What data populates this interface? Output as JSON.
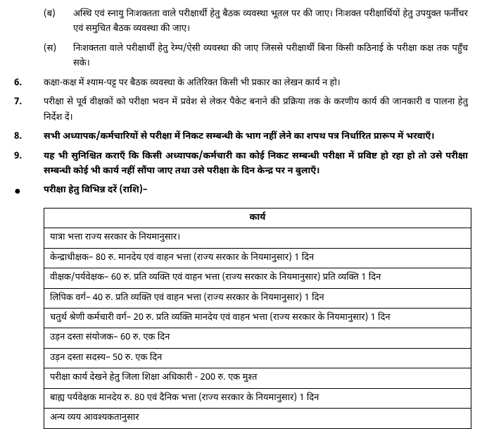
{
  "items": [
    {
      "marker": "",
      "submarker": "(ब)",
      "text": "अस्थि एवं स्नायु निःशक्तता वाले परीक्षार्थी हेतु बैठक व्यवस्था भूतल पर की जाए। निःशक्त परीक्षार्थियों हेतु उपयुक्त फर्नीचर एवं समुचित बैठक व्यवस्था की जाए।",
      "bold": false,
      "sub": true
    },
    {
      "marker": "",
      "submarker": "(स)",
      "text": "निःशक्तता वाले परीक्षार्थी हेतु रेम्प/ऐसी व्यवस्था की जाए जिससे परीक्षार्थी बिना किसी कठिनाई के परीक्षा कक्ष तक पहुँच सके।",
      "bold": false,
      "sub": true
    },
    {
      "marker": "6.",
      "text": "कक्षा-कक्ष में श्याम-पट्ट पर बैठक व्यवस्था के अतिरिक्त किसी भी प्रकार का लेखन कार्य न हो।",
      "bold": false
    },
    {
      "marker": "7.",
      "text": "परीक्षा से पूर्व वीक्षकों को परीक्षा भवन में प्रवेश से लेकर पैकेट बनाने की प्रक्रिया तक के करणीय कार्य की जानकारी व पालना हेतु निर्देश दें।",
      "bold": false
    },
    {
      "marker": "8.",
      "text": "सभी अध्यापक/कर्मचारियों से परीक्षा में निकट सम्बन्धी के भाग नहीं लेने का शपथ पत्र निर्धारित प्रारूप में भरवाएँ।",
      "bold": true
    },
    {
      "marker": "9.",
      "text": "यह भी सुनिश्चित कराएँ कि किसी अध्यापक/कर्मचारी का कोई निकट सम्बन्धी परीक्षा में प्रविष्ट हो रहा हो तो उसे परीक्षा सम्बन्धी कोई भी कार्य नहीं सौंपा जाए तथा उसे परीक्षा के दिन केन्द्र पर न बुलाएँ।",
      "bold": true
    }
  ],
  "bullet": {
    "text": "परीक्षा हेतु विभिन्न दरें (राशि)–"
  },
  "table": {
    "header": "कार्य",
    "rows": [
      "यात्रा भत्ता राज्य सरकार के नियमानुसार।",
      "केन्द्राधीक्षक– 80 रु. मानदेय एवं वाहन भत्ता (राज्य सरकार के नियमानुसार) 1 दिन",
      "वीक्षक/पर्यवेक्षक– 60 रु. प्रति व्यक्ति एवं वाहन भत्ता (राज्य सरकार के नियमानुसार) प्रति व्यक्ति 1 दिन",
      "लिपिक वर्ग– 40 रु. प्रति व्यक्ति एवं वाहन भत्ता (राज्य सरकार के नियमानुसार) 1 दिन",
      "चतुर्थ श्रेणी कर्मचारी वर्ग– 20 रु. प्रति व्यक्ति मानदेय एवं वाहन भत्ता (राज्य सरकार के नियमानुसार) 1 दिन",
      "उड़न दस्ता संयोजक– 60 रु. एक दिन",
      "उड़न दस्ता सदस्य– 50 रु. एक दिन",
      "परीक्षा कार्य देखने हेतु जिला शिक्षा अधिकारी - 200 रु. एक मुश्त",
      "बाह्य पर्यवेक्षक मानदेय रु. 80 एवं दैनिक भत्ता (राज्य सरकार के नियमानुसार) 1 दिन",
      "अन्य व्यय आवश्यकतानुसार"
    ]
  }
}
